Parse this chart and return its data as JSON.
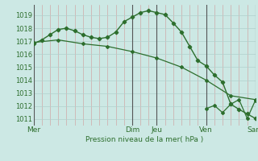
{
  "background_color": "#cce8e4",
  "grid_color_x_minor": "#c9a0a0",
  "grid_color_y_minor": "#b8d8d4",
  "line_color": "#2d6e2d",
  "ylabel_text": "Pression niveau de la mer( hPa )",
  "ylim": [
    1010.5,
    1019.8
  ],
  "yticks": [
    1011,
    1012,
    1013,
    1014,
    1015,
    1016,
    1017,
    1018,
    1019
  ],
  "day_labels": [
    "Mer",
    "",
    "Dim",
    "Jeu",
    "",
    "Ven",
    "",
    "Sam"
  ],
  "day_tick_labels": [
    "Mer",
    "Dim",
    "Jeu",
    "Ven",
    "Sam"
  ],
  "day_tick_positions": [
    0,
    12,
    15,
    21,
    27
  ],
  "vline_positions": [
    0,
    12,
    15,
    21,
    27
  ],
  "series1_x": [
    0,
    3,
    6,
    9,
    12,
    15,
    18,
    21,
    24,
    27
  ],
  "series1_y": [
    1016.9,
    1017.1,
    1016.8,
    1016.6,
    1016.2,
    1015.7,
    1015.0,
    1014.0,
    1012.8,
    1012.5
  ],
  "series2_x": [
    0,
    1,
    2,
    3,
    4,
    5,
    6,
    7,
    8,
    9,
    10,
    11,
    12,
    13,
    14,
    15,
    16,
    17,
    18,
    19,
    20,
    21,
    22,
    23,
    24,
    25,
    26,
    27
  ],
  "series2_y": [
    1016.8,
    1017.1,
    1017.5,
    1017.9,
    1018.0,
    1017.8,
    1017.5,
    1017.3,
    1017.2,
    1017.3,
    1017.7,
    1018.5,
    1018.85,
    1019.2,
    1019.35,
    1019.2,
    1019.05,
    1018.4,
    1017.7,
    1016.6,
    1015.5,
    1015.1,
    1014.4,
    1013.85,
    1012.15,
    1011.75,
    1011.4,
    1011.05
  ],
  "series3_x": [
    21,
    22,
    23,
    24,
    25,
    26,
    27
  ],
  "series3_y": [
    1011.8,
    1012.05,
    1011.5,
    1012.15,
    1012.5,
    1011.05,
    1012.45
  ],
  "xmin": 0,
  "xmax": 27
}
